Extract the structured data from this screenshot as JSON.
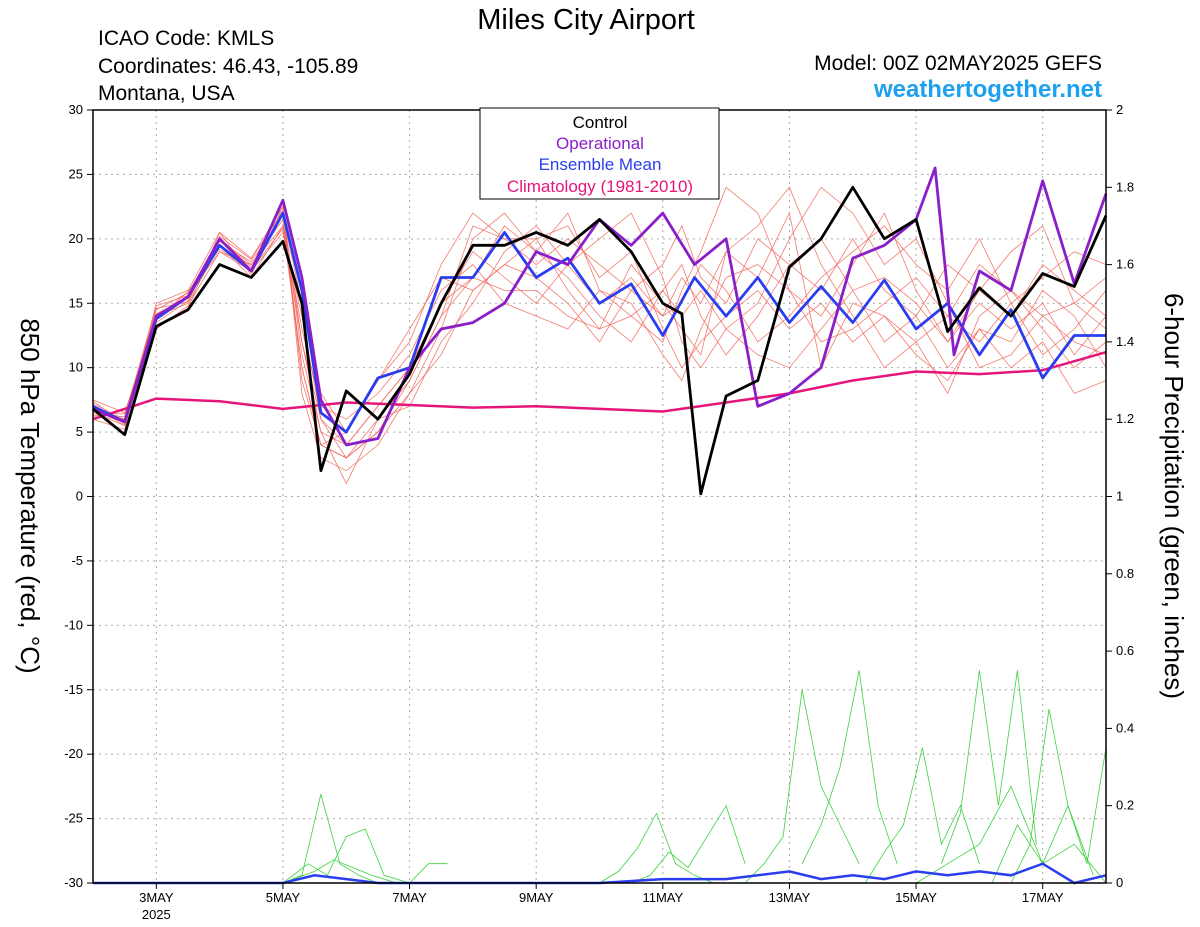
{
  "header": {
    "title": "Miles City Airport",
    "icao": "ICAO Code: KMLS",
    "coords": "Coordinates: 46.43, -105.89",
    "region": "Montana, USA",
    "model": "Model: 00Z 02MAY2025 GEFS",
    "site": "weathertogether.net"
  },
  "chart_data": {
    "type": "line",
    "title": "Miles City Airport",
    "ylabel": "850 hPa Temperature (red, °C)",
    "ylabel_right": "6-hour Precipitation (green, inches)",
    "ylim": [
      -30,
      30
    ],
    "ylim_right": [
      0,
      2
    ],
    "y_ticks": [
      30,
      25,
      20,
      15,
      10,
      5,
      0,
      -5,
      -10,
      -15,
      -20,
      -25,
      -30
    ],
    "y_ticks_right": [
      2,
      1.8,
      1.6,
      1.4,
      1.2,
      1,
      0.8,
      0.6,
      0.4,
      0.2,
      0
    ],
    "x_unit": "days since 02MAY2025 00Z",
    "xlim": [
      0,
      16
    ],
    "x_ticks": [
      {
        "x": 1,
        "label": "3MAY",
        "sub": "2025"
      },
      {
        "x": 3,
        "label": "5MAY",
        "sub": ""
      },
      {
        "x": 5,
        "label": "7MAY",
        "sub": ""
      },
      {
        "x": 7,
        "label": "9MAY",
        "sub": ""
      },
      {
        "x": 9,
        "label": "11MAY",
        "sub": ""
      },
      {
        "x": 11,
        "label": "13MAY",
        "sub": ""
      },
      {
        "x": 13,
        "label": "15MAY",
        "sub": ""
      },
      {
        "x": 15,
        "label": "17MAY",
        "sub": ""
      }
    ],
    "grid": true,
    "legend_position": "top-center",
    "legend": [
      {
        "name": "Control",
        "color": "#000000"
      },
      {
        "name": "Operational",
        "color": "#8a1ec8"
      },
      {
        "name": "Ensemble Mean",
        "color": "#2a3ef0"
      },
      {
        "name": "Climatology (1981-2010)",
        "color": "#e6157a"
      }
    ],
    "colors": {
      "control": "#000000",
      "operational": "#8a1ec8",
      "mean": "#2a3ef0",
      "climatology": "#e6157a",
      "members": "#f26458",
      "precip_members": "#3cd23c",
      "precip_mean": "#2a3ef0",
      "site": "#1ea0f0"
    },
    "series": [
      {
        "name": "Control",
        "x": [
          0,
          0.5,
          1,
          1.5,
          2,
          2.5,
          3,
          3.3,
          3.6,
          4,
          4.5,
          5,
          5.5,
          6,
          6.5,
          7,
          7.5,
          8,
          8.5,
          9,
          9.3,
          9.6,
          10,
          10.5,
          11,
          11.5,
          12,
          12.5,
          13,
          13.5,
          14,
          14.5,
          15,
          15.5,
          16
        ],
        "y": [
          6.8,
          4.8,
          13.2,
          14.5,
          18,
          17,
          19.8,
          15,
          2,
          8.2,
          6,
          9.5,
          15,
          19.5,
          19.5,
          20.5,
          19.5,
          21.5,
          19,
          15,
          14.2,
          0.2,
          7.8,
          9,
          17.8,
          20,
          24,
          20,
          21.5,
          12.8,
          16.2,
          14,
          17.3,
          16.3,
          21.8
        ]
      },
      {
        "name": "Operational",
        "x": [
          0,
          0.5,
          1,
          1.5,
          2,
          2.5,
          3,
          3.3,
          3.6,
          4,
          4.5,
          5,
          5.5,
          6,
          6.5,
          7,
          7.5,
          8,
          8.5,
          9,
          9.5,
          10,
          10.5,
          11,
          11.5,
          12,
          12.5,
          13,
          13.3,
          13.6,
          14,
          14.5,
          15,
          15.5,
          16
        ],
        "y": [
          6.8,
          5.8,
          14,
          15.5,
          20,
          17.5,
          23,
          17,
          7.5,
          4,
          4.5,
          10,
          13,
          13.5,
          15,
          19,
          18,
          21.5,
          19.5,
          22,
          18,
          20,
          7,
          8,
          10,
          18.5,
          19.5,
          21.5,
          25.5,
          11,
          17.5,
          16,
          24.5,
          16.5,
          23.5
        ]
      },
      {
        "name": "Ensemble Mean",
        "x": [
          0,
          0.5,
          1,
          1.5,
          2,
          2.5,
          3,
          3.3,
          3.6,
          4,
          4.5,
          5,
          5.5,
          6,
          6.5,
          7,
          7.5,
          8,
          8.5,
          9,
          9.5,
          10,
          10.5,
          11,
          11.5,
          12,
          12.5,
          13,
          13.5,
          14,
          14.5,
          15,
          15.5,
          16
        ],
        "y": [
          7,
          5.8,
          13.8,
          15.5,
          19.5,
          17.5,
          22,
          16,
          6.5,
          5,
          9.2,
          10,
          17,
          17,
          20.5,
          17,
          18.5,
          15,
          16.5,
          12.5,
          17,
          14,
          17,
          13.5,
          16.3,
          13.5,
          16.8,
          13,
          15,
          11,
          14.5,
          9.2,
          12.5,
          12.5
        ]
      },
      {
        "name": "Climatology (1981-2010)",
        "x": [
          0,
          1,
          2,
          3,
          4,
          5,
          6,
          7,
          8,
          9,
          10,
          11,
          12,
          13,
          14,
          15,
          16
        ],
        "y": [
          6,
          7.6,
          7.4,
          6.8,
          7.3,
          7.1,
          6.9,
          7,
          6.8,
          6.6,
          7.3,
          8,
          9,
          9.7,
          9.5,
          9.8,
          11.2
        ]
      }
    ],
    "ensemble_members": [
      {
        "y": [
          6.5,
          5.5,
          14.5,
          15.8,
          20,
          18,
          21.5,
          10,
          4,
          5,
          9,
          12,
          18,
          22,
          20,
          20,
          16,
          13,
          18,
          15,
          13,
          11,
          19,
          17,
          22,
          10,
          15,
          14,
          12,
          8,
          14,
          16,
          13,
          10,
          12
        ]
      },
      {
        "y": [
          7.2,
          6,
          13,
          14.8,
          19,
          17.5,
          20.5,
          14,
          6,
          3,
          5,
          9,
          14,
          17,
          21,
          19,
          22,
          16,
          14,
          12,
          16,
          19,
          24,
          22,
          16,
          14,
          18,
          22,
          16,
          12,
          16,
          14,
          18,
          16,
          14
        ]
      },
      {
        "y": [
          6,
          5.2,
          15,
          16,
          20.5,
          18.5,
          22.5,
          8,
          3,
          2,
          4,
          8,
          11,
          16,
          18,
          17,
          15,
          12,
          16,
          18,
          21,
          17,
          15,
          20,
          18,
          16,
          20,
          16,
          14,
          10,
          13,
          12,
          16,
          14,
          10
        ]
      },
      {
        "y": [
          7.5,
          6.5,
          14,
          15,
          19.5,
          17,
          21,
          12,
          5,
          4,
          7,
          10,
          15,
          19,
          17,
          15,
          18,
          20,
          22,
          17,
          12,
          10,
          13,
          15,
          20,
          24,
          22,
          18,
          20,
          15,
          10,
          11,
          14,
          12,
          11
        ]
      },
      {
        "y": [
          6.8,
          5.8,
          13.5,
          15.2,
          20,
          17.8,
          22,
          11,
          5,
          1,
          6,
          7,
          12,
          15,
          19,
          21,
          18,
          15,
          17,
          14,
          15,
          18,
          16,
          12,
          14,
          17,
          19,
          21,
          18,
          16,
          20,
          15,
          17,
          19,
          18
        ]
      },
      {
        "y": [
          6.3,
          6.2,
          14.8,
          15.6,
          19,
          18,
          21,
          13,
          7,
          6,
          8,
          11,
          16,
          18,
          15,
          14,
          13,
          16,
          15,
          11,
          9,
          13,
          17,
          18,
          16,
          12,
          13,
          15,
          17,
          14,
          12,
          15,
          11,
          13,
          16
        ]
      },
      {
        "y": [
          7,
          5.5,
          13.2,
          14.6,
          20.5,
          17.2,
          22.5,
          9,
          4,
          3,
          5,
          8,
          13,
          20,
          22,
          19,
          17,
          14,
          12,
          16,
          18,
          14,
          11,
          14,
          18,
          20,
          16,
          12,
          14,
          18,
          16,
          19,
          21,
          15,
          13
        ]
      },
      {
        "y": [
          6.6,
          6.4,
          14.2,
          15.4,
          19.8,
          18.2,
          21.8,
          15,
          8,
          5,
          9,
          13,
          17,
          16,
          18,
          20,
          21,
          17,
          19,
          13,
          10,
          12,
          14,
          16,
          13,
          15,
          12,
          14,
          11,
          9,
          13,
          10,
          12,
          8,
          9
        ]
      },
      {
        "y": [
          7.4,
          5.6,
          13.8,
          15.9,
          19.2,
          17.6,
          20.8,
          10,
          4,
          3,
          6,
          9,
          14,
          21,
          20,
          18,
          20,
          18,
          16,
          14,
          17,
          15,
          19,
          21,
          24,
          18,
          14,
          10,
          12,
          14,
          18,
          16,
          14,
          15,
          17
        ]
      },
      {
        "y": [
          6.2,
          6,
          14.6,
          15.1,
          20.2,
          18.4,
          22.2,
          12,
          6,
          4,
          7,
          10,
          15,
          17,
          16,
          16,
          14,
          13,
          14,
          16,
          14,
          16,
          13,
          11,
          10,
          13,
          16,
          17,
          15,
          12,
          15,
          13,
          15,
          11,
          14
        ]
      }
    ],
    "precip": {
      "note": "6-hour precipitation in inches, right axis",
      "members": [
        {
          "x": [
            3,
            3.3,
            3.6,
            3.9,
            4.2,
            4.5,
            5,
            5.3,
            5.6
          ],
          "y": [
            0,
            0.02,
            0.23,
            0.05,
            0.02,
            0,
            0,
            0.05,
            0.05
          ]
        },
        {
          "x": [
            3,
            3.4,
            3.7,
            4,
            4.3,
            4.6,
            5
          ],
          "y": [
            0,
            0.05,
            0.02,
            0.12,
            0.14,
            0.02,
            0
          ]
        },
        {
          "x": [
            3,
            3.5,
            3.8,
            4.1,
            4.4,
            4.8
          ],
          "y": [
            0,
            0.03,
            0.06,
            0.04,
            0.02,
            0
          ]
        },
        {
          "x": [
            8,
            8.3,
            8.6,
            8.9,
            9.2,
            9.5,
            9.8
          ],
          "y": [
            0,
            0.03,
            0.09,
            0.18,
            0.05,
            0.02,
            0
          ]
        },
        {
          "x": [
            8.5,
            8.8,
            9.1,
            9.4,
            9.7,
            10,
            10.3
          ],
          "y": [
            0,
            0.02,
            0.08,
            0.04,
            0.12,
            0.2,
            0.05
          ]
        },
        {
          "x": [
            10.3,
            10.6,
            10.9,
            11.2,
            11.5,
            11.8,
            12.1
          ],
          "y": [
            0,
            0.05,
            0.12,
            0.5,
            0.25,
            0.15,
            0.05
          ]
        },
        {
          "x": [
            11.2,
            11.5,
            11.8,
            12.1,
            12.4,
            12.7
          ],
          "y": [
            0.05,
            0.15,
            0.3,
            0.55,
            0.2,
            0.05
          ]
        },
        {
          "x": [
            12.2,
            12.5,
            12.8,
            13.1,
            13.4,
            13.7,
            14
          ],
          "y": [
            0,
            0.08,
            0.15,
            0.35,
            0.1,
            0.2,
            0.05
          ]
        },
        {
          "x": [
            13.4,
            13.7,
            14,
            14.3,
            14.6,
            14.9
          ],
          "y": [
            0.05,
            0.18,
            0.55,
            0.2,
            0.55,
            0.1
          ]
        },
        {
          "x": [
            14.5,
            14.8,
            15.1,
            15.4,
            15.7,
            16
          ],
          "y": [
            0,
            0.1,
            0.45,
            0.2,
            0.05,
            0.35
          ]
        },
        {
          "x": [
            13,
            13.5,
            14,
            14.5,
            15,
            15.5,
            16
          ],
          "y": [
            0,
            0.05,
            0.1,
            0.25,
            0.05,
            0.1,
            0
          ]
        },
        {
          "x": [
            14.2,
            14.6,
            15,
            15.4,
            15.8
          ],
          "y": [
            0,
            0.15,
            0.05,
            0.2,
            0.02
          ]
        }
      ],
      "mean": {
        "x": [
          0,
          3,
          3.5,
          4,
          4.5,
          8,
          9,
          10,
          11,
          11.5,
          12,
          12.5,
          13,
          13.5,
          14,
          14.5,
          15,
          15.5,
          16
        ],
        "y": [
          0,
          0,
          0.02,
          0.01,
          0,
          0,
          0.01,
          0.01,
          0.03,
          0.01,
          0.02,
          0.01,
          0.03,
          0.02,
          0.03,
          0.02,
          0.05,
          0,
          0.02
        ]
      }
    }
  }
}
